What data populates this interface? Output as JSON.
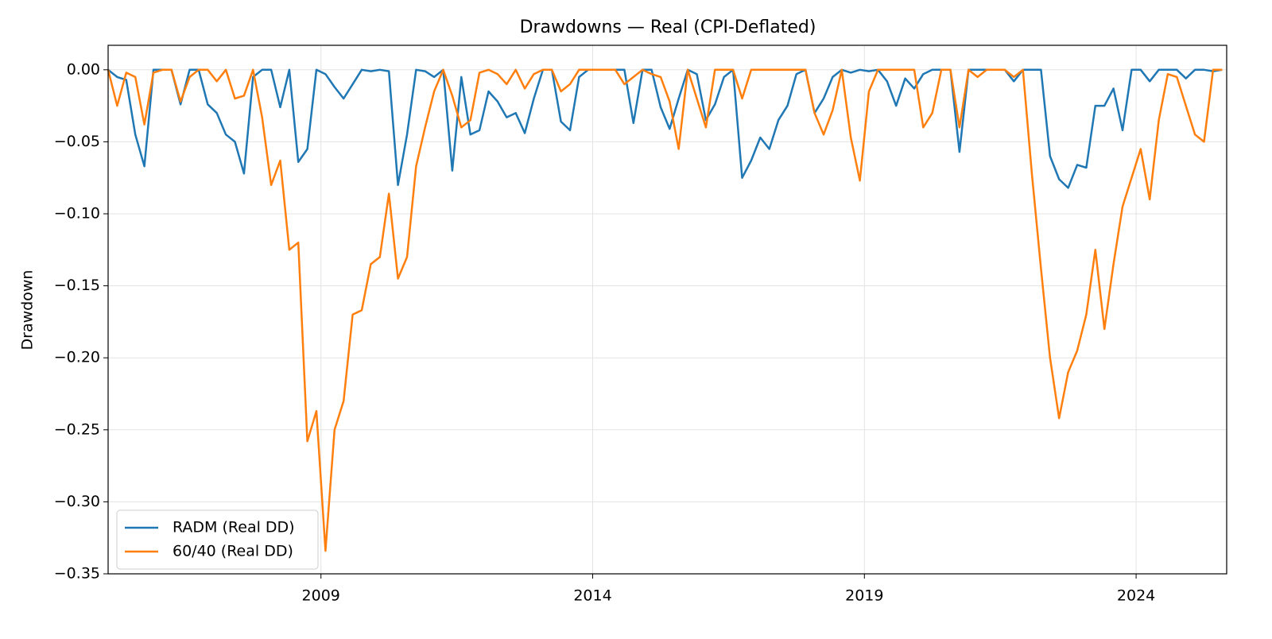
{
  "chart_data": {
    "type": "line",
    "title": "Drawdowns — Real (CPI-Deflated)",
    "y_label": "Drawdown",
    "x": [
      "2005-02",
      "2005-04",
      "2005-06",
      "2005-08",
      "2005-10",
      "2005-12",
      "2006-02",
      "2006-04",
      "2006-06",
      "2006-08",
      "2006-10",
      "2006-12",
      "2007-02",
      "2007-04",
      "2007-06",
      "2007-08",
      "2007-10",
      "2007-12",
      "2008-02",
      "2008-04",
      "2008-06",
      "2008-08",
      "2008-10",
      "2008-12",
      "2009-02",
      "2009-04",
      "2009-06",
      "2009-08",
      "2009-10",
      "2009-12",
      "2010-02",
      "2010-04",
      "2010-06",
      "2010-08",
      "2010-10",
      "2010-12",
      "2011-02",
      "2011-04",
      "2011-06",
      "2011-08",
      "2011-10",
      "2011-12",
      "2012-02",
      "2012-04",
      "2012-06",
      "2012-08",
      "2012-10",
      "2012-12",
      "2013-02",
      "2013-04",
      "2013-06",
      "2013-08",
      "2013-10",
      "2013-12",
      "2014-02",
      "2014-04",
      "2014-06",
      "2014-08",
      "2014-10",
      "2014-12",
      "2015-02",
      "2015-04",
      "2015-06",
      "2015-08",
      "2015-10",
      "2015-12",
      "2016-02",
      "2016-04",
      "2016-06",
      "2016-08",
      "2016-10",
      "2016-12",
      "2017-02",
      "2017-04",
      "2017-06",
      "2017-08",
      "2017-10",
      "2017-12",
      "2018-02",
      "2018-04",
      "2018-06",
      "2018-08",
      "2018-10",
      "2018-12",
      "2019-02",
      "2019-04",
      "2019-06",
      "2019-08",
      "2019-10",
      "2019-12",
      "2020-02",
      "2020-04",
      "2020-06",
      "2020-08",
      "2020-10",
      "2020-12",
      "2021-02",
      "2021-04",
      "2021-06",
      "2021-08",
      "2021-10",
      "2021-12",
      "2022-02",
      "2022-04",
      "2022-06",
      "2022-08",
      "2022-10",
      "2022-12",
      "2023-02",
      "2023-04",
      "2023-06",
      "2023-08",
      "2023-10",
      "2023-12",
      "2024-02",
      "2024-04",
      "2024-06",
      "2024-08",
      "2024-10",
      "2024-12",
      "2025-02",
      "2025-04",
      "2025-06",
      "2025-08"
    ],
    "series": [
      {
        "name": "RADM (Real DD)",
        "color": "#1f77b4",
        "values": [
          0,
          -0.005,
          -0.007,
          -0.045,
          -0.067,
          0,
          0,
          0,
          -0.024,
          0,
          0,
          -0.024,
          -0.03,
          -0.045,
          -0.05,
          -0.072,
          -0.005,
          0,
          0,
          -0.026,
          0,
          -0.064,
          -0.055,
          0,
          -0.003,
          -0.012,
          -0.02,
          -0.01,
          0,
          -0.001,
          0,
          -0.001,
          -0.08,
          -0.045,
          0,
          -0.001,
          -0.005,
          0,
          -0.07,
          -0.005,
          -0.045,
          -0.042,
          -0.015,
          -0.022,
          -0.033,
          -0.03,
          -0.044,
          -0.02,
          0,
          0,
          -0.036,
          -0.042,
          -0.005,
          0,
          0,
          0,
          0,
          0,
          -0.037,
          0,
          0,
          -0.026,
          -0.041,
          -0.02,
          0,
          -0.003,
          -0.035,
          -0.024,
          -0.005,
          0,
          -0.075,
          -0.063,
          -0.047,
          -0.055,
          -0.035,
          -0.025,
          -0.003,
          0,
          -0.03,
          -0.02,
          -0.005,
          0,
          -0.002,
          0,
          -0.001,
          0,
          -0.008,
          -0.025,
          -0.006,
          -0.013,
          -0.003,
          0,
          0,
          0,
          -0.057,
          0,
          0,
          0,
          0,
          0,
          -0.008,
          0,
          0,
          0,
          -0.06,
          -0.076,
          -0.082,
          -0.066,
          -0.068,
          -0.025,
          -0.025,
          -0.013,
          -0.042,
          0,
          0,
          -0.008,
          0,
          0,
          0,
          -0.006,
          0,
          0,
          -0.001,
          0
        ]
      },
      {
        "name": "60/40 (Real DD)",
        "color": "#ff7f0e",
        "values": [
          0,
          -0.025,
          -0.002,
          -0.005,
          -0.038,
          -0.002,
          0,
          0,
          -0.022,
          -0.005,
          0,
          0,
          -0.008,
          0,
          -0.02,
          -0.018,
          0,
          -0.033,
          -0.08,
          -0.063,
          -0.125,
          -0.12,
          -0.258,
          -0.237,
          -0.334,
          -0.25,
          -0.23,
          -0.17,
          -0.167,
          -0.135,
          -0.13,
          -0.086,
          -0.145,
          -0.13,
          -0.067,
          -0.04,
          -0.015,
          0,
          -0.018,
          -0.04,
          -0.035,
          -0.002,
          0,
          -0.003,
          -0.01,
          0,
          -0.013,
          -0.003,
          0,
          0,
          -0.015,
          -0.01,
          0,
          0,
          0,
          0,
          0,
          -0.01,
          -0.005,
          0,
          -0.003,
          -0.005,
          -0.022,
          -0.055,
          0,
          -0.02,
          -0.04,
          0,
          0,
          0,
          -0.02,
          0,
          0,
          0,
          0,
          0,
          0,
          0,
          -0.03,
          -0.045,
          -0.028,
          0,
          -0.047,
          -0.077,
          -0.015,
          0,
          0,
          0,
          0,
          0,
          -0.04,
          -0.03,
          0,
          0,
          -0.04,
          0,
          -0.005,
          0,
          0,
          0,
          -0.005,
          0,
          -0.073,
          -0.138,
          -0.2,
          -0.242,
          -0.21,
          -0.195,
          -0.17,
          -0.125,
          -0.18,
          -0.135,
          -0.095,
          -0.075,
          -0.055,
          -0.09,
          -0.035,
          -0.003,
          -0.005,
          -0.025,
          -0.045,
          -0.05,
          0,
          0
        ]
      }
    ],
    "xlim": [
      "2005-02",
      "2025-09"
    ],
    "xticks": [
      "2009",
      "2014",
      "2019",
      "2024"
    ],
    "ylim": [
      -0.35,
      0.017
    ],
    "yticks": [
      {
        "value": 0,
        "label": "0.00"
      },
      {
        "value": -0.05,
        "label": "−0.05"
      },
      {
        "value": -0.1,
        "label": "−0.10"
      },
      {
        "value": -0.15,
        "label": "−0.15"
      },
      {
        "value": -0.2,
        "label": "−0.20"
      },
      {
        "value": -0.25,
        "label": "−0.25"
      },
      {
        "value": -0.3,
        "label": "−0.30"
      },
      {
        "value": -0.35,
        "label": "−0.35"
      }
    ],
    "grid": true,
    "legend": "lower left"
  }
}
